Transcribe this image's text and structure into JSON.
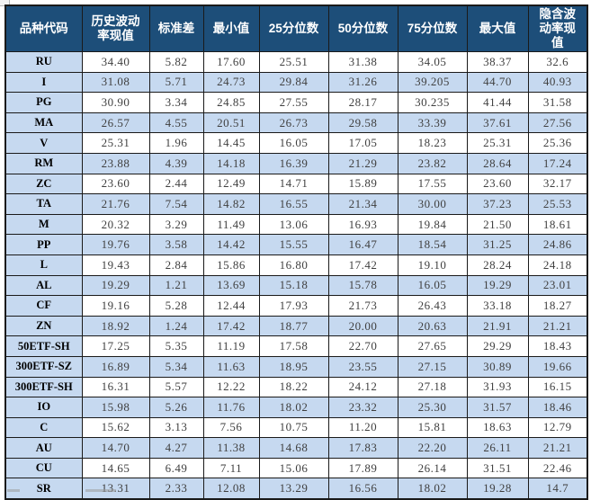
{
  "table": {
    "columns": [
      "品种代码",
      "历史波动率现值",
      "标准差",
      "最小值",
      "25分位数",
      "50分位数",
      "75分位数",
      "最大值",
      "隐含波动率现值"
    ],
    "rows": [
      {
        "code": "RU",
        "values": [
          "34.40",
          "5.82",
          "17.60",
          "25.51",
          "31.38",
          "34.05",
          "38.37",
          "32.6"
        ]
      },
      {
        "code": "I",
        "values": [
          "31.08",
          "5.71",
          "24.73",
          "29.84",
          "31.26",
          "39.205",
          "44.70",
          "40.93"
        ]
      },
      {
        "code": "PG",
        "values": [
          "30.90",
          "3.34",
          "24.85",
          "27.55",
          "28.17",
          "30.235",
          "41.44",
          "31.58"
        ]
      },
      {
        "code": "MA",
        "values": [
          "26.57",
          "4.55",
          "20.51",
          "26.73",
          "29.58",
          "33.39",
          "37.61",
          "27.56"
        ]
      },
      {
        "code": "V",
        "values": [
          "25.31",
          "1.96",
          "14.45",
          "16.05",
          "17.05",
          "18.23",
          "25.31",
          "25.36"
        ]
      },
      {
        "code": "RM",
        "values": [
          "23.88",
          "4.39",
          "14.18",
          "16.39",
          "21.29",
          "23.82",
          "28.64",
          "17.24"
        ]
      },
      {
        "code": "ZC",
        "values": [
          "23.60",
          "2.44",
          "12.49",
          "14.71",
          "15.89",
          "17.55",
          "23.60",
          "32.17"
        ]
      },
      {
        "code": "TA",
        "values": [
          "21.76",
          "7.54",
          "14.82",
          "16.55",
          "21.34",
          "30.00",
          "37.23",
          "25.53"
        ]
      },
      {
        "code": "M",
        "values": [
          "20.32",
          "3.29",
          "11.49",
          "13.06",
          "16.93",
          "19.84",
          "21.50",
          "18.61"
        ]
      },
      {
        "code": "PP",
        "values": [
          "19.76",
          "3.58",
          "14.42",
          "15.55",
          "16.47",
          "18.54",
          "31.25",
          "24.86"
        ]
      },
      {
        "code": "L",
        "values": [
          "19.43",
          "2.84",
          "15.86",
          "16.80",
          "17.42",
          "19.10",
          "28.24",
          "24.18"
        ]
      },
      {
        "code": "AL",
        "values": [
          "19.29",
          "1.21",
          "13.69",
          "15.18",
          "15.78",
          "16.05",
          "19.29",
          "23.01"
        ]
      },
      {
        "code": "CF",
        "values": [
          "19.16",
          "5.28",
          "12.44",
          "17.93",
          "21.73",
          "26.43",
          "33.18",
          "18.27"
        ]
      },
      {
        "code": "ZN",
        "values": [
          "18.92",
          "1.24",
          "17.42",
          "18.77",
          "20.00",
          "20.63",
          "21.91",
          "21.21"
        ]
      },
      {
        "code": "50ETF-SH",
        "values": [
          "17.25",
          "5.35",
          "11.19",
          "17.58",
          "22.70",
          "27.65",
          "29.29",
          "18.43"
        ]
      },
      {
        "code": "300ETF-SZ",
        "values": [
          "16.89",
          "5.34",
          "11.63",
          "18.95",
          "23.55",
          "27.15",
          "30.89",
          "19.66"
        ]
      },
      {
        "code": "300ETF-SH",
        "values": [
          "16.31",
          "5.57",
          "12.22",
          "18.22",
          "24.12",
          "27.18",
          "31.93",
          "16.15"
        ]
      },
      {
        "code": "IO",
        "values": [
          "15.98",
          "5.26",
          "11.76",
          "18.02",
          "23.32",
          "25.30",
          "31.57",
          "18.46"
        ]
      },
      {
        "code": "C",
        "values": [
          "15.62",
          "3.13",
          "7.56",
          "10.75",
          "11.20",
          "15.81",
          "18.63",
          "12.79"
        ]
      },
      {
        "code": "AU",
        "values": [
          "14.70",
          "4.27",
          "11.38",
          "14.68",
          "17.83",
          "22.20",
          "26.11",
          "21.21"
        ]
      },
      {
        "code": "CU",
        "values": [
          "14.65",
          "6.49",
          "7.11",
          "15.06",
          "17.89",
          "26.14",
          "31.51",
          "22.46"
        ]
      },
      {
        "code": "SR",
        "values": [
          "13.31",
          "2.33",
          "12.08",
          "13.29",
          "16.56",
          "18.02",
          "19.28",
          "14.7"
        ]
      }
    ]
  },
  "chart_data": {
    "type": "table",
    "title": "",
    "columns": [
      "品种代码",
      "历史波动率现值",
      "标准差",
      "最小值",
      "25分位数",
      "50分位数",
      "75分位数",
      "最大值",
      "隐含波动率现值"
    ],
    "rows": [
      [
        "RU",
        34.4,
        5.82,
        17.6,
        25.51,
        31.38,
        34.05,
        38.37,
        32.6
      ],
      [
        "I",
        31.08,
        5.71,
        24.73,
        29.84,
        31.26,
        39.205,
        44.7,
        40.93
      ],
      [
        "PG",
        30.9,
        3.34,
        24.85,
        27.55,
        28.17,
        30.235,
        41.44,
        31.58
      ],
      [
        "MA",
        26.57,
        4.55,
        20.51,
        26.73,
        29.58,
        33.39,
        37.61,
        27.56
      ],
      [
        "V",
        25.31,
        1.96,
        14.45,
        16.05,
        17.05,
        18.23,
        25.31,
        25.36
      ],
      [
        "RM",
        23.88,
        4.39,
        14.18,
        16.39,
        21.29,
        23.82,
        28.64,
        17.24
      ],
      [
        "ZC",
        23.6,
        2.44,
        12.49,
        14.71,
        15.89,
        17.55,
        23.6,
        32.17
      ],
      [
        "TA",
        21.76,
        7.54,
        14.82,
        16.55,
        21.34,
        30.0,
        37.23,
        25.53
      ],
      [
        "M",
        20.32,
        3.29,
        11.49,
        13.06,
        16.93,
        19.84,
        21.5,
        18.61
      ],
      [
        "PP",
        19.76,
        3.58,
        14.42,
        15.55,
        16.47,
        18.54,
        31.25,
        24.86
      ],
      [
        "L",
        19.43,
        2.84,
        15.86,
        16.8,
        17.42,
        19.1,
        28.24,
        24.18
      ],
      [
        "AL",
        19.29,
        1.21,
        13.69,
        15.18,
        15.78,
        16.05,
        19.29,
        23.01
      ],
      [
        "CF",
        19.16,
        5.28,
        12.44,
        17.93,
        21.73,
        26.43,
        33.18,
        18.27
      ],
      [
        "ZN",
        18.92,
        1.24,
        17.42,
        18.77,
        20.0,
        20.63,
        21.91,
        21.21
      ],
      [
        "50ETF-SH",
        17.25,
        5.35,
        11.19,
        17.58,
        22.7,
        27.65,
        29.29,
        18.43
      ],
      [
        "300ETF-SZ",
        16.89,
        5.34,
        11.63,
        18.95,
        23.55,
        27.15,
        30.89,
        19.66
      ],
      [
        "300ETF-SH",
        16.31,
        5.57,
        12.22,
        18.22,
        24.12,
        27.18,
        31.93,
        16.15
      ],
      [
        "IO",
        15.98,
        5.26,
        11.76,
        18.02,
        23.32,
        25.3,
        31.57,
        18.46
      ],
      [
        "C",
        15.62,
        3.13,
        7.56,
        10.75,
        11.2,
        15.81,
        18.63,
        12.79
      ],
      [
        "AU",
        14.7,
        4.27,
        11.38,
        14.68,
        17.83,
        22.2,
        26.11,
        21.21
      ],
      [
        "CU",
        14.65,
        6.49,
        7.11,
        15.06,
        17.89,
        26.14,
        31.51,
        22.46
      ],
      [
        "SR",
        13.31,
        2.33,
        12.08,
        13.29,
        16.56,
        18.02,
        19.28,
        14.7
      ]
    ]
  },
  "colors": {
    "header_bg": "#1D4E79",
    "header_text": "#FFFFFF",
    "row_alt_bg": "#C6D9F0",
    "label_col_bg": "#C6D9F0",
    "border": "#1A1A1A",
    "number_text": "#404040",
    "label_text": "#000000"
  }
}
